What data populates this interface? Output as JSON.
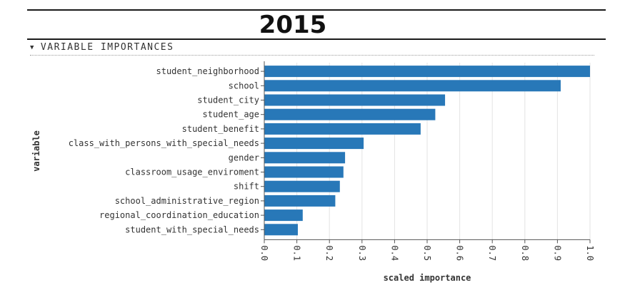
{
  "page": {
    "year_title": "2015",
    "section_header": "VARIABLE IMPORTANCES"
  },
  "chart_data": {
    "type": "bar",
    "orientation": "horizontal",
    "title": "",
    "xlabel": "scaled importance",
    "ylabel": "variable",
    "xlim": [
      0,
      1.0
    ],
    "xticks": [
      "0.0",
      "0.1",
      "0.2",
      "0.3",
      "0.4",
      "0.5",
      "0.6",
      "0.7",
      "0.8",
      "0.9",
      "1.0"
    ],
    "grid": true,
    "bar_color": "#2878b8",
    "categories": [
      "student_neighborhood",
      "school",
      "student_city",
      "student_age",
      "student_benefit",
      "class_with_persons_with_special_needs",
      "gender",
      "classroom_usage_enviroment",
      "shift",
      "school_administrative_region",
      "regional_coordination_education",
      "student_with_special_needs"
    ],
    "values": [
      1.0,
      0.91,
      0.555,
      0.525,
      0.48,
      0.305,
      0.248,
      0.243,
      0.232,
      0.218,
      0.118,
      0.103
    ]
  }
}
